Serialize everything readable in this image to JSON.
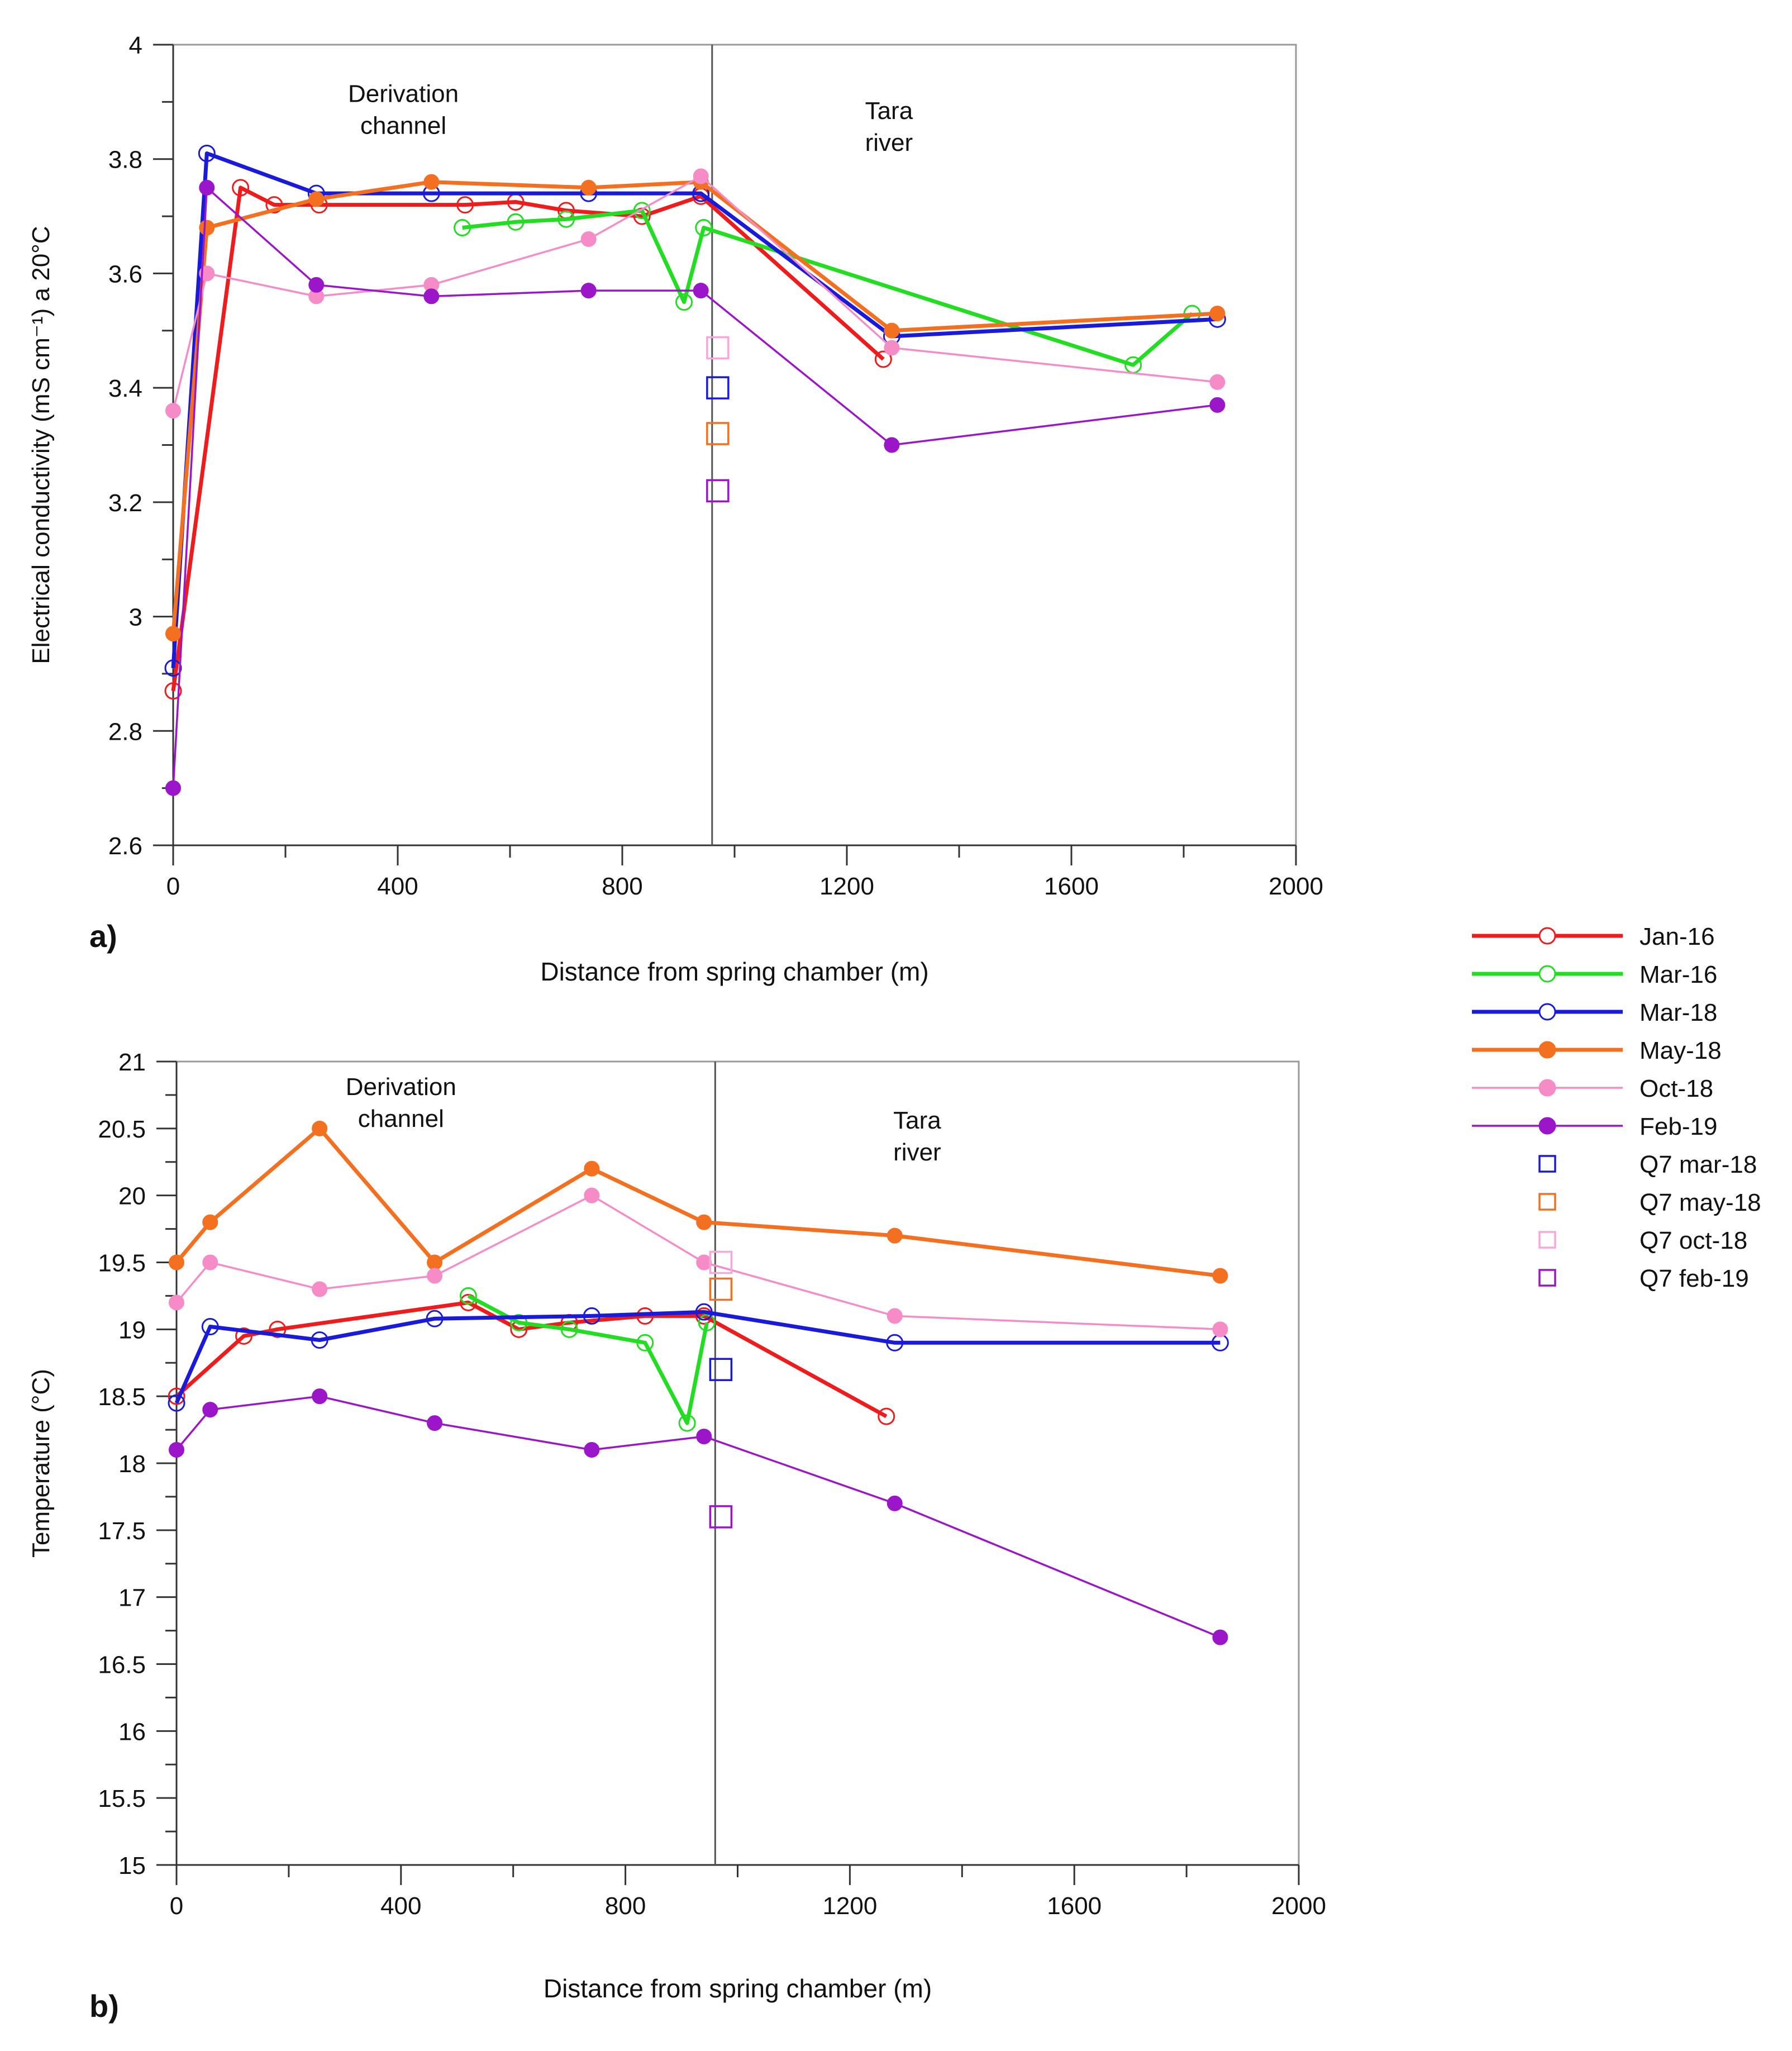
{
  "chart_data": [
    {
      "type": "line",
      "panel_label": "a)",
      "xlabel": "Distance from spring chamber (m)",
      "ylabel": "Electrical conductivity (mS cm⁻¹) a 20°C",
      "xlim": [
        0,
        2000
      ],
      "ylim": [
        2.6,
        4.0
      ],
      "xticks": [
        0,
        400,
        800,
        1200,
        1600,
        2000
      ],
      "yticks": [
        2.6,
        2.8,
        3.0,
        3.2,
        3.4,
        3.6,
        3.8,
        4.0
      ],
      "ytick_labels": [
        "2.6",
        "2.8",
        "3",
        "3.2",
        "3.4",
        "3.6",
        "3.8",
        "4"
      ],
      "divider_x": 960,
      "annotations": [
        {
          "lines": [
            "Derivation",
            "channel"
          ],
          "x": 410,
          "y": 3.9
        },
        {
          "lines": [
            "Tara",
            "river"
          ],
          "x": 1275,
          "y": 3.87
        }
      ],
      "grid": false,
      "series": [
        {
          "name": "Jan-16",
          "color": "#ee1c1c",
          "marker": "open-circle",
          "width": "thick",
          "x": [
            0,
            120,
            180,
            260,
            520,
            610,
            700,
            835,
            940,
            1265
          ],
          "y": [
            2.87,
            3.75,
            3.72,
            3.72,
            3.72,
            3.725,
            3.71,
            3.7,
            3.735,
            3.45
          ]
        },
        {
          "name": "Mar-16",
          "color": "#22dd22",
          "marker": "open-circle",
          "width": "thick",
          "x": [
            515,
            610,
            700,
            835,
            910,
            945,
            1710,
            1815
          ],
          "y": [
            3.68,
            3.69,
            3.695,
            3.71,
            3.55,
            3.68,
            3.44,
            3.53
          ]
        },
        {
          "name": "Mar-18",
          "color": "#1a1adb",
          "marker": "open-circle",
          "width": "thick",
          "x": [
            0,
            60,
            255,
            460,
            740,
            940,
            1280,
            1860
          ],
          "y": [
            2.91,
            3.81,
            3.74,
            3.74,
            3.74,
            3.74,
            3.49,
            3.52
          ]
        },
        {
          "name": "May-18",
          "color": "#f37021",
          "marker": "filled-circle",
          "width": "thick",
          "x": [
            0,
            60,
            255,
            460,
            740,
            940,
            1280,
            1860
          ],
          "y": [
            2.97,
            3.68,
            3.73,
            3.76,
            3.75,
            3.76,
            3.5,
            3.53
          ]
        },
        {
          "name": "Oct-18",
          "color": "#f58cc8",
          "marker": "filled-circle",
          "width": "thin",
          "x": [
            0,
            60,
            255,
            460,
            740,
            940,
            1280,
            1860
          ],
          "y": [
            3.36,
            3.6,
            3.56,
            3.58,
            3.66,
            3.77,
            3.47,
            3.41
          ]
        },
        {
          "name": "Feb-19",
          "color": "#9b16c9",
          "marker": "filled-circle",
          "width": "thin",
          "x": [
            0,
            60,
            255,
            460,
            740,
            940,
            1280,
            1860
          ],
          "y": [
            2.7,
            3.75,
            3.58,
            3.56,
            3.57,
            3.57,
            3.3,
            3.37
          ]
        }
      ],
      "q7_points": [
        {
          "name": "Q7 oct-18",
          "color": "#f7a8d8",
          "x": 970,
          "y": 3.47
        },
        {
          "name": "Q7 mar-18",
          "color": "#1a1adb",
          "x": 970,
          "y": 3.4
        },
        {
          "name": "Q7 may-18",
          "color": "#f37021",
          "x": 970,
          "y": 3.32
        },
        {
          "name": "Q7 feb-19",
          "color": "#9b16c9",
          "x": 970,
          "y": 3.22
        }
      ]
    },
    {
      "type": "line",
      "panel_label": "b)",
      "xlabel": "Distance from spring chamber (m)",
      "ylabel": "Temperature (°C)",
      "xlim": [
        0,
        2000
      ],
      "ylim": [
        15,
        21
      ],
      "xticks": [
        0,
        400,
        800,
        1200,
        1600,
        2000
      ],
      "yticks": [
        15,
        15.5,
        16,
        16.5,
        17,
        17.5,
        18,
        18.5,
        19,
        19.5,
        20,
        20.5,
        21
      ],
      "ytick_labels": [
        "15",
        "15.5",
        "16",
        "16.5",
        "17",
        "17.5",
        "18",
        "18.5",
        "19",
        "19.5",
        "20",
        "20.5",
        "21"
      ],
      "divider_x": 960,
      "annotations": [
        {
          "lines": [
            "Derivation",
            "channel"
          ],
          "x": 400,
          "y": 20.75
        },
        {
          "lines": [
            "Tara",
            "river"
          ],
          "x": 1320,
          "y": 20.5
        }
      ],
      "grid": false,
      "series": [
        {
          "name": "Jan-16",
          "color": "#ee1c1c",
          "marker": "open-circle",
          "width": "thick",
          "x": [
            0,
            120,
            180,
            520,
            610,
            700,
            835,
            940,
            1265
          ],
          "y": [
            18.5,
            18.95,
            19.0,
            19.2,
            19.0,
            19.05,
            19.1,
            19.1,
            18.35
          ]
        },
        {
          "name": "Mar-16",
          "color": "#22dd22",
          "marker": "open-circle",
          "width": "thick",
          "x": [
            520,
            610,
            700,
            835,
            910,
            945
          ],
          "y": [
            19.25,
            19.05,
            19.0,
            18.9,
            18.3,
            19.05
          ]
        },
        {
          "name": "Mar-18",
          "color": "#1a1adb",
          "marker": "open-circle",
          "width": "thick",
          "x": [
            0,
            60,
            255,
            460,
            740,
            940,
            1280,
            1860
          ],
          "y": [
            18.45,
            19.02,
            18.92,
            19.08,
            19.1,
            19.13,
            18.9,
            18.9
          ]
        },
        {
          "name": "May-18",
          "color": "#f37021",
          "marker": "filled-circle",
          "width": "thick",
          "x": [
            0,
            60,
            255,
            460,
            740,
            940,
            1280,
            1860
          ],
          "y": [
            19.5,
            19.8,
            20.5,
            19.5,
            20.2,
            19.8,
            19.7,
            19.4
          ]
        },
        {
          "name": "Oct-18",
          "color": "#f58cc8",
          "marker": "filled-circle",
          "width": "thin",
          "x": [
            0,
            60,
            255,
            460,
            740,
            940,
            1280,
            1860
          ],
          "y": [
            19.2,
            19.5,
            19.3,
            19.4,
            20.0,
            19.5,
            19.1,
            19.0
          ]
        },
        {
          "name": "Feb-19",
          "color": "#9b16c9",
          "marker": "filled-circle",
          "width": "thin",
          "x": [
            0,
            60,
            255,
            460,
            740,
            940,
            1280,
            1860
          ],
          "y": [
            18.1,
            18.4,
            18.5,
            18.3,
            18.1,
            18.2,
            17.7,
            16.7
          ]
        }
      ],
      "q7_points": [
        {
          "name": "Q7 oct-18",
          "color": "#f7a8d8",
          "x": 970,
          "y": 19.5
        },
        {
          "name": "Q7 may-18",
          "color": "#f37021",
          "x": 970,
          "y": 19.3
        },
        {
          "name": "Q7 mar-18",
          "color": "#1a1adb",
          "x": 970,
          "y": 18.7
        },
        {
          "name": "Q7 feb-19",
          "color": "#9b16c9",
          "x": 970,
          "y": 17.6
        }
      ]
    }
  ],
  "legend": {
    "placement": "right, between panels",
    "entries": [
      {
        "label": "Jan-16",
        "color": "#ee1c1c",
        "kind": "line-open-circle",
        "width": "thick"
      },
      {
        "label": "Mar-16",
        "color": "#22dd22",
        "kind": "line-open-circle",
        "width": "thick"
      },
      {
        "label": "Mar-18",
        "color": "#1a1adb",
        "kind": "line-open-circle",
        "width": "thick"
      },
      {
        "label": "May-18",
        "color": "#f37021",
        "kind": "line-filled-circle",
        "width": "thick"
      },
      {
        "label": "Oct-18",
        "color": "#f58cc8",
        "kind": "line-filled-circle",
        "width": "thin"
      },
      {
        "label": "Feb-19",
        "color": "#9b16c9",
        "kind": "line-filled-circle",
        "width": "thin"
      },
      {
        "label": "Q7 mar-18",
        "color": "#1a1adb",
        "kind": "open-square"
      },
      {
        "label": "Q7 may-18",
        "color": "#f37021",
        "kind": "open-square"
      },
      {
        "label": "Q7 oct-18",
        "color": "#f7a8d8",
        "kind": "open-square"
      },
      {
        "label": "Q7 feb-19",
        "color": "#9b16c9",
        "kind": "open-square"
      }
    ]
  }
}
